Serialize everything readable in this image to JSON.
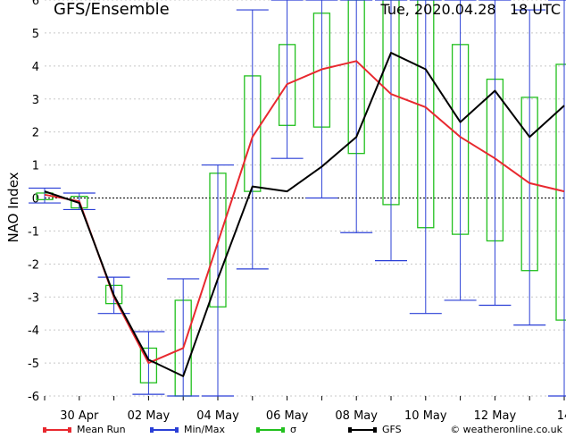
{
  "chart_data": {
    "type": "line",
    "title": "GFS/Ensemble",
    "run_info": "Tue, 2020.04.28   18 UTC",
    "ylabel": "NAO Index",
    "xlabel": "",
    "ylim": [
      -6,
      6
    ],
    "yticks": [
      "6",
      "5",
      "4",
      "3",
      "2",
      "1",
      "0",
      "-1",
      "-2",
      "-3",
      "-4",
      "-5",
      "-6"
    ],
    "xticks": [
      {
        "step": 1,
        "label": "30 Apr"
      },
      {
        "step": 3,
        "label": "02 May"
      },
      {
        "step": 5,
        "label": "04 May"
      },
      {
        "step": 7,
        "label": "06 May"
      },
      {
        "step": 9,
        "label": "08 May"
      },
      {
        "step": 11,
        "label": "10 May"
      },
      {
        "step": 13,
        "label": "12 May"
      },
      {
        "step": 15,
        "label": "14"
      }
    ],
    "steps": [
      0,
      1,
      2,
      3,
      4,
      5,
      6,
      7,
      8,
      9,
      10,
      11,
      12,
      13,
      14,
      15
    ],
    "series": [
      {
        "name": "Mean Run",
        "color": "#e8292f",
        "values": [
          0.1,
          -0.1,
          -3.0,
          -5.0,
          -4.55,
          -1.35,
          1.85,
          3.45,
          3.9,
          4.15,
          3.15,
          2.75,
          1.85,
          1.2,
          0.45,
          0.2
        ]
      },
      {
        "name": "GFS",
        "color": "#000000",
        "values": [
          0.2,
          -0.15,
          -2.95,
          -4.9,
          -5.4,
          -2.45,
          0.35,
          0.2,
          0.95,
          1.85,
          4.4,
          3.9,
          2.3,
          3.25,
          1.85,
          2.8
        ]
      }
    ],
    "minmax": {
      "name": "Min/Max",
      "color": "#2a3fd6",
      "min": [
        -0.15,
        -0.35,
        -3.5,
        -5.95,
        -6.0,
        -6.0,
        -2.15,
        1.2,
        0.0,
        -1.05,
        -1.9,
        -3.5,
        -3.1,
        -3.25,
        -3.85,
        -6.0
      ],
      "max": [
        0.3,
        0.15,
        -2.4,
        -4.05,
        -2.45,
        1.0,
        5.7,
        6.0,
        6.0,
        6.0,
        6.0,
        6.0,
        6.0,
        6.0,
        5.7,
        6.0
      ]
    },
    "sigma": {
      "name": "σ",
      "color": "#22c01e",
      "low": [
        -0.05,
        -0.3,
        -3.2,
        -5.6,
        -6.0,
        -3.3,
        0.2,
        2.2,
        2.15,
        1.35,
        -0.2,
        -0.9,
        -1.1,
        -1.3,
        -2.2,
        -3.7
      ],
      "high": [
        0.15,
        0.05,
        -2.65,
        -4.55,
        -3.1,
        0.75,
        3.7,
        4.65,
        5.6,
        6.0,
        6.0,
        6.0,
        4.65,
        3.6,
        3.05,
        4.05
      ]
    },
    "grid": true,
    "legend_position": "bottom",
    "credit": "© weatheronline.co.uk"
  }
}
